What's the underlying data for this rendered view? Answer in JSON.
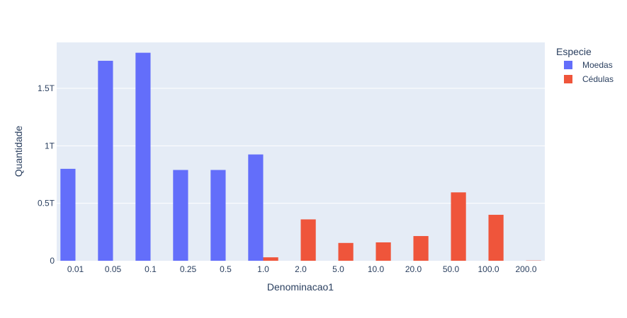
{
  "chart_data": {
    "type": "bar",
    "title": "",
    "xlabel": "Denominacao1",
    "ylabel": "Quantidade",
    "categories": [
      "0.01",
      "0.05",
      "0.1",
      "0.25",
      "0.5",
      "1.0",
      "2.0",
      "5.0",
      "10.0",
      "20.0",
      "50.0",
      "100.0",
      "200.0"
    ],
    "series": [
      {
        "name": "Moedas",
        "color": "#636efa",
        "values": [
          800000000000.0,
          1740000000000.0,
          1810000000000.0,
          790000000000.0,
          790000000000.0,
          925000000000.0,
          null,
          null,
          null,
          null,
          null,
          null,
          null
        ]
      },
      {
        "name": "Cédulas",
        "color": "#ef553b",
        "values": [
          null,
          null,
          null,
          null,
          null,
          30000000000.0,
          360000000000.0,
          155000000000.0,
          160000000000.0,
          215000000000.0,
          595000000000.0,
          400000000000.0,
          2000000000.0
        ]
      }
    ],
    "ylim": [
      0,
      1900000000000.0
    ],
    "yticks": [
      0,
      500000000000.0,
      1000000000000.0,
      1500000000000.0
    ],
    "ytick_labels": [
      "0",
      "0.5T",
      "1T",
      "1.5T"
    ],
    "legend": {
      "title": "Especie",
      "placement": "right"
    },
    "grid": true,
    "plot_background": "#e5ecf6"
  }
}
